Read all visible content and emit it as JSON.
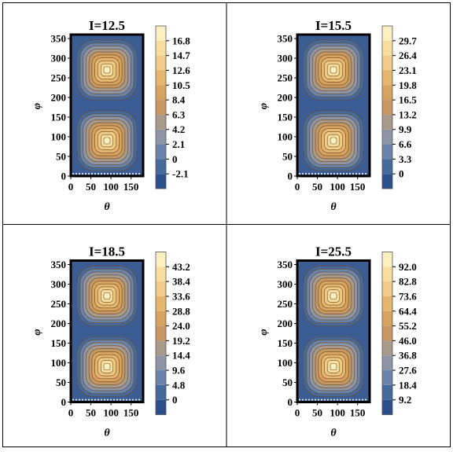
{
  "chart_data": [
    {
      "type": "heatmap",
      "subtype": "contour",
      "title": "I=12.5",
      "xlabel": "θ",
      "ylabel": "φ",
      "xlim": [
        0,
        180
      ],
      "ylim": [
        0,
        360
      ],
      "x_ticks": [
        "0",
        "50",
        "100",
        "150"
      ],
      "y_ticks": [
        "0",
        "50",
        "100",
        "150",
        "200",
        "250",
        "300",
        "350"
      ],
      "peaks": [
        {
          "theta": 90,
          "phi": 90
        },
        {
          "theta": 90,
          "phi": 270
        }
      ],
      "colorbar": [
        "-2.1",
        "0",
        "2.1",
        "4.2",
        "6.3",
        "8.4",
        "10.5",
        "12.6",
        "14.7",
        "16.8"
      ]
    },
    {
      "type": "heatmap",
      "subtype": "contour",
      "title": "I=15.5",
      "xlabel": "θ",
      "ylabel": "φ",
      "xlim": [
        0,
        180
      ],
      "ylim": [
        0,
        360
      ],
      "x_ticks": [
        "0",
        "50",
        "100",
        "150"
      ],
      "y_ticks": [
        "0",
        "50",
        "100",
        "150",
        "200",
        "250",
        "300",
        "350"
      ],
      "peaks": [
        {
          "theta": 90,
          "phi": 90
        },
        {
          "theta": 90,
          "phi": 270
        }
      ],
      "colorbar": [
        "0",
        "3.3",
        "6.6",
        "9.9",
        "13.2",
        "16.5",
        "19.8",
        "23.1",
        "26.4",
        "29.7"
      ]
    },
    {
      "type": "heatmap",
      "subtype": "contour",
      "title": "I=18.5",
      "xlabel": "θ",
      "ylabel": "φ",
      "xlim": [
        0,
        180
      ],
      "ylim": [
        0,
        360
      ],
      "x_ticks": [
        "0",
        "50",
        "100",
        "150"
      ],
      "y_ticks": [
        "0",
        "50",
        "100",
        "150",
        "200",
        "250",
        "300",
        "350"
      ],
      "peaks": [
        {
          "theta": 90,
          "phi": 90
        },
        {
          "theta": 90,
          "phi": 270
        }
      ],
      "colorbar": [
        "0",
        "4.8",
        "9.6",
        "14.4",
        "19.2",
        "24.0",
        "28.8",
        "33.6",
        "38.4",
        "43.2"
      ]
    },
    {
      "type": "heatmap",
      "subtype": "contour",
      "title": "I=25.5",
      "xlabel": "θ",
      "ylabel": "φ",
      "xlim": [
        0,
        180
      ],
      "ylim": [
        0,
        360
      ],
      "x_ticks": [
        "0",
        "50",
        "100",
        "150"
      ],
      "y_ticks": [
        "0",
        "50",
        "100",
        "150",
        "200",
        "250",
        "300",
        "350"
      ],
      "peaks": [
        {
          "theta": 90,
          "phi": 90
        },
        {
          "theta": 90,
          "phi": 270
        }
      ],
      "colorbar": [
        "9.2",
        "18.4",
        "27.6",
        "36.8",
        "46.0",
        "55.2",
        "64.4",
        "73.6",
        "82.8",
        "92.0"
      ]
    }
  ],
  "palette": [
    "#2b4f8a",
    "#46699c",
    "#6983a9",
    "#8e95a6",
    "#a99b8c",
    "#c49764",
    "#d7a35f",
    "#e4b66e",
    "#efcb86",
    "#f6dea0",
    "#fcf0c2"
  ],
  "colors": {
    "background": "#3b5d93",
    "contour_line": "#6b4a22",
    "frame": "#000000"
  }
}
